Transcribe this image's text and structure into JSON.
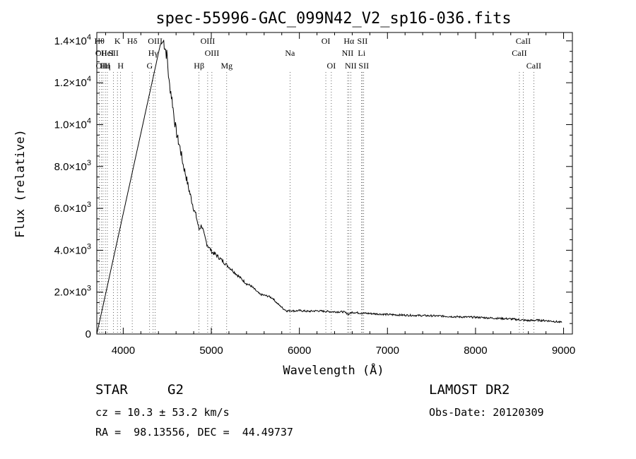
{
  "chart_data": {
    "type": "line",
    "title": "spec-55996-GAC_099N42_V2_sp16-036.fits",
    "xlabel": "Wavelength (Å)",
    "ylabel": "Flux (relative)",
    "xlim": [
      3700,
      9100
    ],
    "ylim": [
      0,
      14400
    ],
    "x_ticks": [
      4000,
      5000,
      6000,
      7000,
      8000,
      9000
    ],
    "y_ticks": [
      {
        "value": 0,
        "mantissa": "0",
        "exponent": ""
      },
      {
        "value": 2000,
        "mantissa": "2.0×10",
        "exponent": "3"
      },
      {
        "value": 4000,
        "mantissa": "4.0×10",
        "exponent": "3"
      },
      {
        "value": 6000,
        "mantissa": "6.0×10",
        "exponent": "3"
      },
      {
        "value": 8000,
        "mantissa": "8.0×10",
        "exponent": "3"
      },
      {
        "value": 10000,
        "mantissa": "1.0×10",
        "exponent": "4"
      },
      {
        "value": 12000,
        "mantissa": "1.2×10",
        "exponent": "4"
      },
      {
        "value": 14000,
        "mantissa": "1.4×10",
        "exponent": "4"
      }
    ],
    "grid": false,
    "series": [
      {
        "x": [
          3700,
          4420,
          4460,
          4500,
          4520,
          4540,
          4560,
          4580,
          4600,
          4620,
          4650,
          4680,
          4710,
          4740,
          4770,
          4800,
          4830,
          4860,
          4890,
          4920,
          4950,
          4980,
          5010,
          5050,
          5100,
          5150,
          5200,
          5250,
          5300,
          5350,
          5400,
          5450,
          5500,
          5550,
          5600,
          5650,
          5700,
          5740,
          5780,
          5820,
          5860,
          5900,
          5950,
          6000,
          6100,
          6200,
          6300,
          6400,
          6500,
          6560,
          6600,
          6700,
          6800,
          7000,
          7200,
          7400,
          7600,
          7800,
          8000,
          8200,
          8400,
          8500,
          8600,
          8700,
          8800,
          8900,
          8980
        ],
        "y": [
          0,
          13800,
          14000,
          13200,
          12000,
          11600,
          11000,
          10300,
          9700,
          9300,
          8800,
          8100,
          7600,
          7000,
          6500,
          6000,
          5600,
          5000,
          5200,
          4700,
          4300,
          4100,
          3900,
          3800,
          3600,
          3400,
          3200,
          3000,
          2800,
          2600,
          2400,
          2300,
          2100,
          1900,
          1850,
          1800,
          1700,
          1500,
          1350,
          1200,
          1100,
          1120,
          1100,
          1120,
          1080,
          1110,
          1080,
          1060,
          1060,
          950,
          1040,
          1000,
          980,
          930,
          900,
          880,
          860,
          820,
          800,
          760,
          720,
          680,
          640,
          660,
          640,
          600,
          550
        ]
      }
    ],
    "lines": [
      {
        "x": 3730,
        "label": "Hθ",
        "row": 0
      },
      {
        "x": 3750,
        "label": "OII",
        "row": 1
      },
      {
        "x": 3771,
        "label": "OIII",
        "row": 2
      },
      {
        "x": 3797,
        "label": "Hη",
        "row": 2
      },
      {
        "x": 3820,
        "label": "HeI",
        "row": 1
      },
      {
        "x": 3889,
        "label": "SII",
        "row": 1
      },
      {
        "x": 3934,
        "label": "K",
        "row": 0
      },
      {
        "x": 3970,
        "label": "H",
        "row": 2
      },
      {
        "x": 4102,
        "label": "Hδ",
        "row": 0
      },
      {
        "x": 4300,
        "label": "G",
        "row": 2
      },
      {
        "x": 4340,
        "label": "Hγ",
        "row": 1
      },
      {
        "x": 4363,
        "label": "OIII",
        "row": 0
      },
      {
        "x": 4861,
        "label": "Hβ",
        "row": 2
      },
      {
        "x": 4959,
        "label": "OIII",
        "row": 0
      },
      {
        "x": 5007,
        "label": "OIII",
        "row": 1
      },
      {
        "x": 5175,
        "label": "Mg",
        "row": 2
      },
      {
        "x": 5893,
        "label": "Na",
        "row": 1
      },
      {
        "x": 6300,
        "label": "OI",
        "row": 0
      },
      {
        "x": 6363,
        "label": "OI",
        "row": 2
      },
      {
        "x": 6548,
        "label": "NII",
        "row": 1
      },
      {
        "x": 6563,
        "label": "Hα",
        "row": 0
      },
      {
        "x": 6583,
        "label": "NII",
        "row": 2
      },
      {
        "x": 6707,
        "label": "Li",
        "row": 1
      },
      {
        "x": 6716,
        "label": "SII",
        "row": 0
      },
      {
        "x": 6731,
        "label": "SII",
        "row": 2
      },
      {
        "x": 8498,
        "label": "CaII",
        "row": 1
      },
      {
        "x": 8542,
        "label": "CaII",
        "row": 0
      },
      {
        "x": 8662,
        "label": "CaII",
        "row": 2
      }
    ]
  },
  "info": {
    "object_class": "STAR",
    "subclass": "G2",
    "survey": "LAMOST DR2",
    "redshift": "cz = 10.3 ± 53.2 km/s",
    "obs_date": "Obs-Date: 20120309",
    "coords": "RA =  98.13556, DEC =  44.49737"
  }
}
